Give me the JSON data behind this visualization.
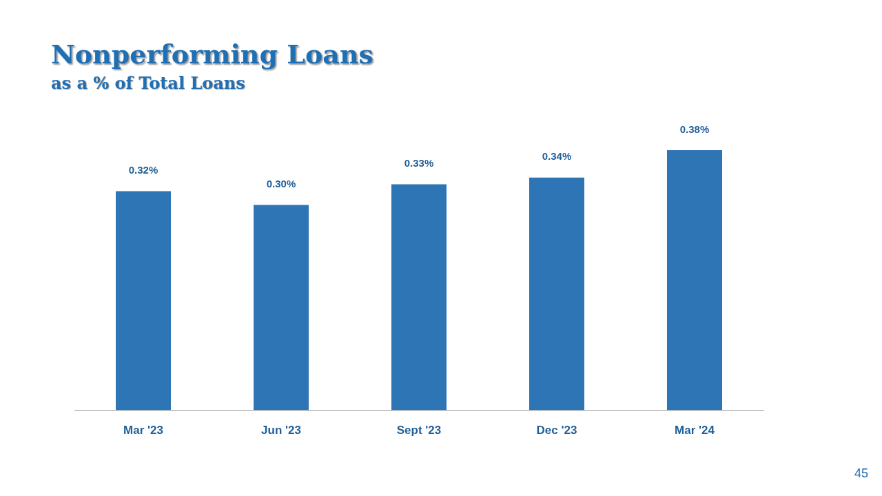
{
  "chart_data": {
    "type": "bar",
    "title": "Nonperforming Loans",
    "subtitle": "as a % of Total Loans",
    "categories": [
      "Mar '23",
      "Jun '23",
      "Sept '23",
      "Dec '23",
      "Mar '24"
    ],
    "values": [
      0.32,
      0.3,
      0.33,
      0.34,
      0.38
    ],
    "value_labels": [
      "0.32%",
      "0.30%",
      "0.33%",
      "0.34%",
      "0.38%"
    ],
    "color": "#2e75b6",
    "annotations": [
      "45"
    ]
  }
}
